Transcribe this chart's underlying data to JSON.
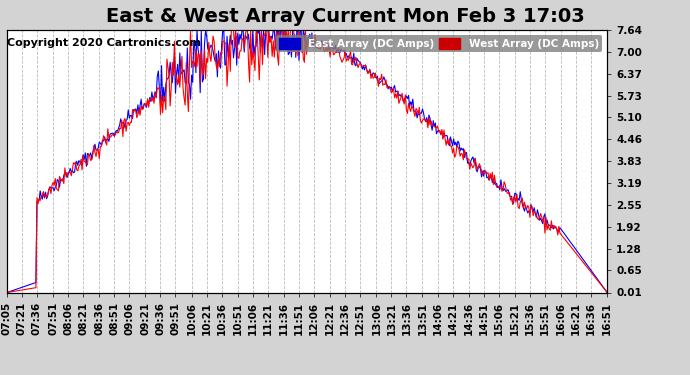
{
  "title": "East & West Array Current Mon Feb 3 17:03",
  "copyright": "Copyright 2020 Cartronics.com",
  "ylabel_right": [
    "7.64",
    "7.00",
    "6.37",
    "5.73",
    "5.10",
    "4.46",
    "3.83",
    "3.19",
    "2.55",
    "1.92",
    "1.28",
    "0.65",
    "0.01"
  ],
  "ytick_values": [
    7.64,
    7.0,
    6.37,
    5.73,
    5.1,
    4.46,
    3.83,
    3.19,
    2.55,
    1.92,
    1.28,
    0.65,
    0.01
  ],
  "ymin": 0.01,
  "ymax": 7.64,
  "legend_east_label": "East Array (DC Amps)",
  "legend_west_label": "West Array (DC Amps)",
  "east_color": "#0000ff",
  "west_color": "#ff0000",
  "legend_east_bg": "#0000cc",
  "legend_west_bg": "#cc0000",
  "bg_color": "#d3d3d3",
  "plot_bg_color": "#ffffff",
  "grid_color": "#aaaaaa",
  "title_fontsize": 14,
  "copyright_fontsize": 8,
  "tick_fontsize": 7.5,
  "x_tick_labels": [
    "07:05",
    "07:21",
    "07:36",
    "07:51",
    "08:06",
    "08:21",
    "08:36",
    "08:51",
    "09:06",
    "09:21",
    "09:36",
    "09:51",
    "10:06",
    "10:21",
    "10:36",
    "10:51",
    "11:06",
    "11:21",
    "11:36",
    "11:51",
    "12:06",
    "12:21",
    "12:36",
    "12:51",
    "13:06",
    "13:21",
    "13:36",
    "13:51",
    "14:06",
    "14:21",
    "14:36",
    "14:51",
    "15:06",
    "15:21",
    "15:36",
    "15:51",
    "16:06",
    "16:21",
    "16:36",
    "16:51"
  ]
}
